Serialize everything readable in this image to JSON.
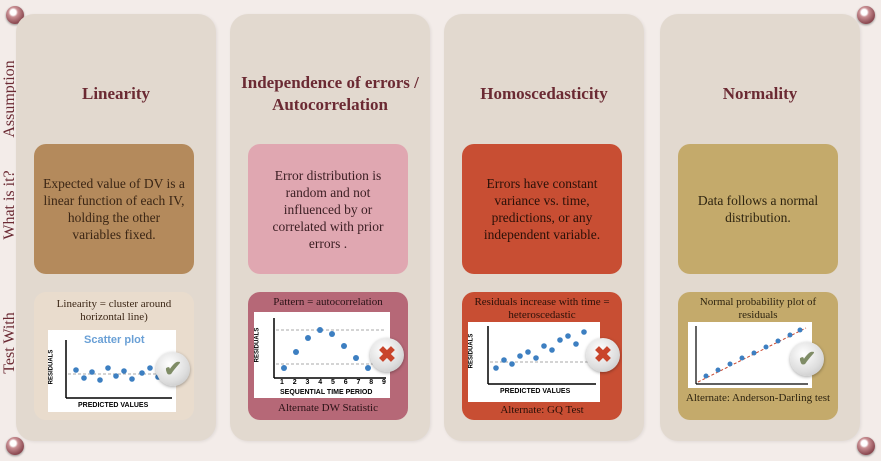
{
  "row_labels": [
    "Assumption",
    "What is it?",
    "Test With"
  ],
  "columns": [
    {
      "title": "Linearity",
      "description": "Expected value of DV is a linear function of each IV, holding the other variables fixed.",
      "desc_color": "#b48a5c",
      "test_color": "#e9dccd",
      "test_caption": "Linearity = cluster around horizontal line)",
      "plot_title": "Scatter plot",
      "y_axis": "RESIDUALS",
      "x_axis": "PREDICTED VALUES",
      "bottom_caption": "",
      "badge": "check",
      "badge_icon": "✔"
    },
    {
      "title": "Independence of errors / Autocorrelation",
      "description": "Error distribution is random and not influenced by or correlated with prior errors .",
      "desc_color": "#e0a7b1",
      "test_color": "#b66877",
      "test_caption": "Pattern = autocorrelation",
      "plot_title": "",
      "y_axis": "RESIDUALS",
      "x_axis": "SEQUENTIAL TIME PERIOD",
      "x_ticks": [
        "1",
        "2",
        "3",
        "4",
        "5",
        "6",
        "7",
        "8",
        "9"
      ],
      "bottom_caption": "Alternate DW Statistic",
      "badge": "cross",
      "badge_icon": "✖"
    },
    {
      "title": "Homoscedasticity",
      "description": "Errors have constant variance vs. time, predictions, or any independent variable.",
      "desc_color": "#c84e33",
      "test_color": "#c84e33",
      "test_caption": "Residuals increase with time = heteroscedastic",
      "plot_title": "",
      "y_axis": "RESIDUALS",
      "x_axis": "PREDICTED VALUES",
      "bottom_caption": "Alternate: GQ Test",
      "badge": "cross",
      "badge_icon": "✖"
    },
    {
      "title": "Normality",
      "description": "Data follows a normal distribution.",
      "desc_color": "#c4aa6b",
      "test_color": "#c4aa6b",
      "test_caption": "Normal probability plot of residuals",
      "plot_title": "",
      "y_axis": "",
      "x_axis": "",
      "bottom_caption": "Alternate: Anderson-Darling test",
      "badge": "check",
      "badge_icon": "✔"
    }
  ]
}
